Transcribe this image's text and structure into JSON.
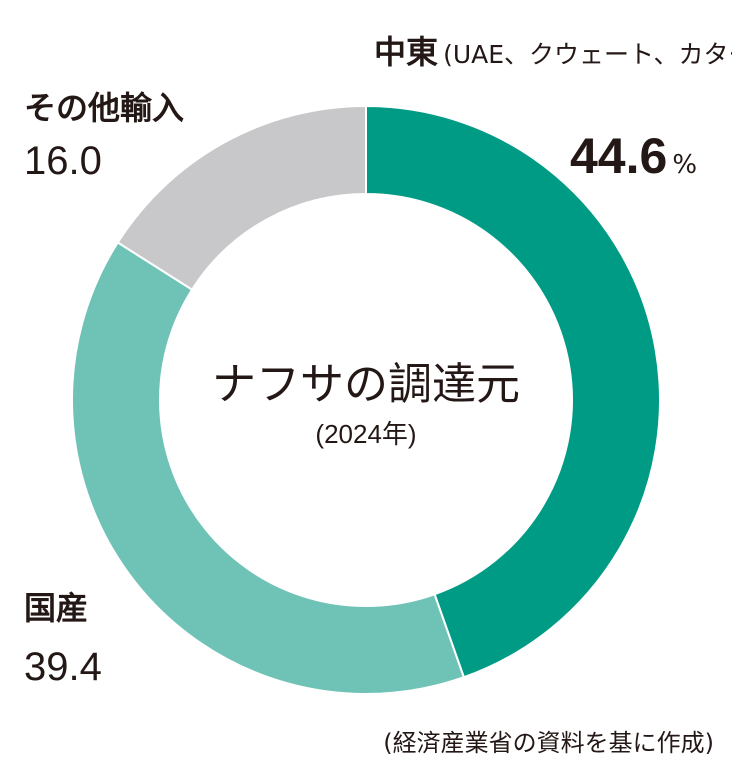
{
  "chart_data": {
    "type": "pie",
    "title": "ナフサの調達元",
    "subtitle": "(2024年)",
    "source": "(経済産業省の資料を基に作成)",
    "unit": "%",
    "categories": [
      "中東",
      "国産",
      "その他輸入"
    ],
    "values": [
      44.6,
      39.4,
      16.0
    ],
    "value_labels": [
      "44.6",
      "39.4",
      "16.0"
    ],
    "notes": {
      "中東": "(UAE、クウェート、カタール等)"
    },
    "colors": [
      "#009b84",
      "#6fc3b6",
      "#c8c8ca"
    ],
    "style": "donut",
    "start": "12 o'clock, clockwise"
  }
}
